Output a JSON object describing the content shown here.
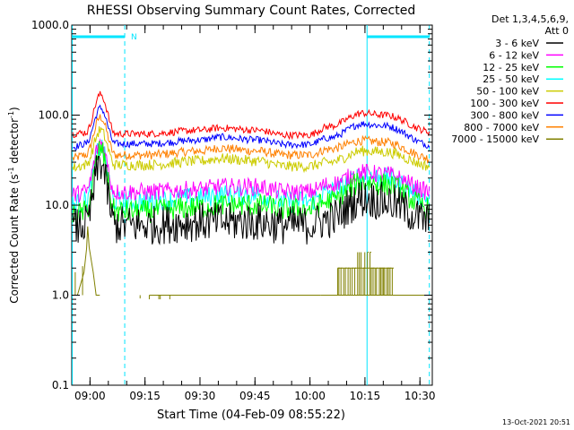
{
  "chart_data": {
    "type": "line",
    "title": "RHESSI Observing Summary Count Rates, Corrected",
    "xlabel": "Start Time (04-Feb-09 08:55:22)",
    "ylabel_main": "Corrected Count Rate (s",
    "ylabel_sup1": "-1",
    "ylabel_mid": " detector",
    "ylabel_sup2": "-1",
    "ylabel_end": ")",
    "y_scale": "log",
    "ylim": [
      0.1,
      1000
    ],
    "y_ticks": [
      {
        "value": 0.1,
        "label": "0.1"
      },
      {
        "value": 1,
        "label": "1.0"
      },
      {
        "value": 10,
        "label": "10.0"
      },
      {
        "value": 100,
        "label": "100.0"
      },
      {
        "value": 1000,
        "label": "1000.0"
      }
    ],
    "x_range_min": [
      -0.35,
      98
    ],
    "x_ticks": [
      {
        "value": 4.63,
        "label": "09:00"
      },
      {
        "value": 19.63,
        "label": "09:15"
      },
      {
        "value": 34.63,
        "label": "09:30"
      },
      {
        "value": 49.63,
        "label": "09:45"
      },
      {
        "value": 64.63,
        "label": "10:00"
      },
      {
        "value": 79.63,
        "label": "10:15"
      },
      {
        "value": 94.63,
        "label": "10:30"
      }
    ],
    "legend": {
      "position": "right",
      "header1": "Det 1,3,4,5,6,9,",
      "header2": "Att 0"
    },
    "series": [
      {
        "name": "3 - 6 keV",
        "color": "#000000",
        "values": [
          5.5,
          6.0,
          30,
          6.0,
          6.0,
          6.5,
          6.5,
          6.5,
          6.0,
          6.0,
          7.0,
          12,
          11,
          6.5
        ],
        "noise": 0.22
      },
      {
        "name": "6 - 12 keV",
        "color": "#ff00ff",
        "values": [
          13,
          14,
          50,
          14,
          14,
          15,
          16,
          16,
          14,
          14,
          17,
          23,
          22,
          14
        ],
        "noise": 0.1
      },
      {
        "name": "12 - 25 keV",
        "color": "#00ff00",
        "values": [
          7.5,
          8.5,
          42,
          8.5,
          8.5,
          9.5,
          10,
          10,
          9.0,
          9.0,
          11,
          18,
          17,
          9.0
        ],
        "noise": 0.13
      },
      {
        "name": "25 - 50 keV",
        "color": "#00ffff",
        "values": [
          10,
          11,
          45,
          11,
          11,
          12,
          13,
          13,
          11,
          11,
          14,
          21,
          20,
          11.5
        ],
        "noise": 0.12
      },
      {
        "name": "50 - 100 keV",
        "color": "#cccc00",
        "values": [
          26,
          28,
          68,
          28,
          28,
          31,
          33,
          31,
          27,
          27,
          30,
          40,
          39,
          27
        ],
        "noise": 0.06
      },
      {
        "name": "100 - 300 keV",
        "color": "#ff0000",
        "values": [
          62,
          64,
          170,
          62,
          62,
          68,
          72,
          68,
          60,
          60,
          75,
          105,
          100,
          65
        ],
        "noise": 0.04
      },
      {
        "name": "300 - 800 keV",
        "color": "#0000ff",
        "values": [
          44,
          48,
          120,
          48,
          48,
          53,
          57,
          53,
          47,
          47,
          56,
          80,
          76,
          46
        ],
        "noise": 0.04
      },
      {
        "name": "800 - 7000 keV",
        "color": "#ff8000",
        "values": [
          33,
          36,
          95,
          36,
          36,
          40,
          43,
          40,
          36,
          36,
          42,
          52,
          50,
          33
        ],
        "noise": 0.05
      },
      {
        "name": "7000 - 15000 keV",
        "color": "#808000",
        "values": [],
        "noise": 0
      }
    ],
    "x_knots_min": [
      -0.35,
      3.5,
      7.5,
      11.5,
      20,
      35,
      40,
      50,
      58,
      64,
      70,
      79,
      85,
      98
    ],
    "flag_label": "N",
    "footer": "13-Oct-2021 20:51"
  }
}
